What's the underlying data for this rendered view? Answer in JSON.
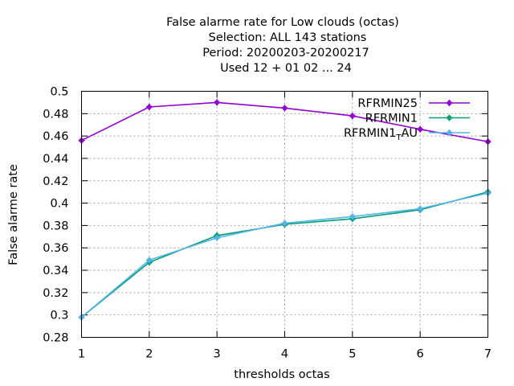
{
  "chart_data": {
    "type": "line",
    "title_lines": [
      "False alarme rate  for Low clouds (octas)",
      "Selection: ALL    143 stations",
      "Period: 20200203-20200217",
      "Used  12 + 01 02 ... 24"
    ],
    "xlabel": "thresholds octas",
    "ylabel": "False alarme rate",
    "xlim": [
      1,
      7
    ],
    "ylim": [
      0.28,
      0.5
    ],
    "x": [
      1,
      2,
      3,
      4,
      5,
      6,
      7
    ],
    "xticks": [
      "1",
      "2",
      "3",
      "4",
      "5",
      "6",
      "7"
    ],
    "yticks": [
      "0.28",
      "0.3",
      "0.32",
      "0.34",
      "0.36",
      "0.38",
      "0.4",
      "0.42",
      "0.44",
      "0.46",
      "0.48",
      "0.5"
    ],
    "grid": true,
    "legend_position": "top-right",
    "series": [
      {
        "name": "RFRMIN25",
        "color": "#9400d3",
        "values": [
          0.456,
          0.486,
          0.49,
          0.485,
          0.478,
          0.466,
          0.455
        ]
      },
      {
        "name": "RFRMIN1",
        "color": "#009e73",
        "values": [
          0.298,
          0.347,
          0.371,
          0.381,
          0.386,
          0.394,
          0.41
        ]
      },
      {
        "name": "RFRMIN1",
        "name_subscript": "T",
        "name_suffix": "AU",
        "color": "#56b4e9",
        "values": [
          0.298,
          0.349,
          0.369,
          0.382,
          0.388,
          0.395,
          0.409
        ]
      }
    ]
  }
}
